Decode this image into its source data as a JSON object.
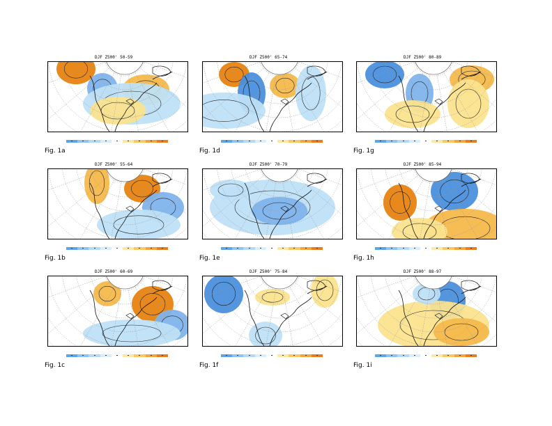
{
  "colors": {
    "pos_strong": "#e8830f",
    "pos_mid": "#f5b94c",
    "pos_light": "#fbe38e",
    "neg_strong": "#4a8fdc",
    "neg_mid": "#7fb3ec",
    "neg_light": "#bfe0f7",
    "colorbar": [
      "#5aa6e8",
      "#8cc3f0",
      "#b4d9f5",
      "#d9eefa",
      "#ffffff",
      "#fbe7a6",
      "#f9c860",
      "#f3a43b",
      "#ec7d1c"
    ]
  },
  "panels": [
    {
      "id": "1a",
      "title": "DJF Z500' 50-59",
      "label": "Fig. 1a"
    },
    {
      "id": "1b",
      "title": "DJF Z500' 55-64",
      "label": "Fig. 1b"
    },
    {
      "id": "1c",
      "title": "DJF Z500' 60-69",
      "label": "Fig. 1c"
    },
    {
      "id": "1d",
      "title": "DJF Z500' 65-74",
      "label": "Fig. 1d"
    },
    {
      "id": "1e",
      "title": "DJF Z500' 70-79",
      "label": "Fig. 1e"
    },
    {
      "id": "1f",
      "title": "DJF Z500' 75-84",
      "label": "Fig. 1f"
    },
    {
      "id": "1g",
      "title": "DJF Z500' 80-89",
      "label": "Fig. 1g"
    },
    {
      "id": "1h",
      "title": "DJF Z500' 85-94",
      "label": "Fig. 1h"
    },
    {
      "id": "1i",
      "title": "DJF Z500' 88-97",
      "label": "Fig. 1i"
    }
  ]
}
